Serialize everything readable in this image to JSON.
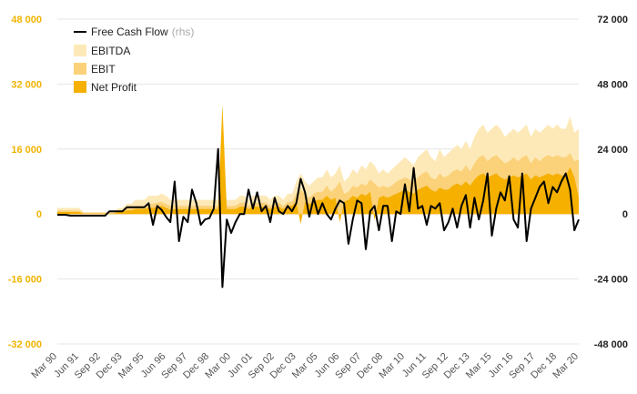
{
  "chart_data": {
    "type": "area",
    "title": "",
    "x_tick_labels": [
      "Mar 90",
      "Jun 91",
      "Sep 92",
      "Dec 93",
      "Mar 95",
      "Jun 96",
      "Sep 97",
      "Dec 98",
      "Mar 00",
      "Jun 01",
      "Sep 02",
      "Dec 03",
      "Mar 05",
      "Jun 06",
      "Sep 07",
      "Dec 08",
      "Mar 10",
      "Jun 11",
      "Sep 12",
      "Dec 13",
      "Mar 15",
      "Jun 16",
      "Sep 17",
      "Dec 18",
      "Mar 20"
    ],
    "y_left": {
      "ticks": [
        "48 000",
        "32 000",
        "16 000",
        "0",
        "-16 000",
        "-32 000"
      ],
      "ylim": [
        -32000,
        48000
      ]
    },
    "y_right": {
      "ticks": [
        "72 000",
        "48 000",
        "24 000",
        "0",
        "-24 000",
        "-48 000"
      ],
      "ylim": [
        -48000,
        72000
      ]
    },
    "grid": true,
    "legend": {
      "position": "top-left",
      "items": [
        {
          "label": "Free Cash Flow",
          "suffix": "(rhs)",
          "kind": "line",
          "color": "#000000"
        },
        {
          "label": "EBITDA",
          "kind": "area",
          "color": "#fde9b8"
        },
        {
          "label": "EBIT",
          "kind": "area",
          "color": "#fbd27a"
        },
        {
          "label": "Net Profit",
          "kind": "area",
          "color": "#f5b000"
        }
      ]
    },
    "series": [
      {
        "name": "EBITDA",
        "axis": "left",
        "color": "#fde9b8",
        "values": [
          1500,
          1500,
          1500,
          1500,
          1500,
          1500,
          500,
          500,
          500,
          500,
          500,
          500,
          500,
          500,
          1500,
          1500,
          2500,
          2500,
          3500,
          3500,
          3500,
          4500,
          4500,
          4500,
          5000,
          4500,
          3500,
          3500,
          3500,
          3500,
          3500,
          3500,
          3500,
          3500,
          3500,
          3500,
          3500,
          3500,
          4500,
          3500,
          3500,
          3500,
          4500,
          4500,
          3500,
          4500,
          4500,
          4500,
          4500,
          3500,
          4500,
          4500,
          3500,
          5000,
          5000,
          8000,
          10000,
          8000,
          7000,
          8000,
          9000,
          9000,
          11000,
          9000,
          10000,
          12000,
          8000,
          9000,
          11000,
          10000,
          12000,
          11000,
          13000,
          12000,
          10000,
          11000,
          10000,
          11000,
          12000,
          13000,
          14000,
          13000,
          12000,
          14000,
          15000,
          16000,
          14000,
          13000,
          16000,
          14000,
          15000,
          16000,
          17000,
          16000,
          18000,
          16000,
          19000,
          21000,
          22000,
          20000,
          21000,
          22000,
          21000,
          19000,
          20000,
          21000,
          20000,
          21000,
          22000,
          19000,
          21000,
          20000,
          21000,
          22000,
          21000,
          22000,
          21000,
          21000,
          24000,
          20000,
          21000
        ]
      },
      {
        "name": "EBIT",
        "axis": "left",
        "color": "#fbd27a",
        "values": [
          900,
          900,
          900,
          900,
          900,
          900,
          300,
          300,
          300,
          300,
          300,
          300,
          300,
          300,
          900,
          900,
          1500,
          1500,
          2000,
          2000,
          2000,
          2500,
          2500,
          2800,
          3000,
          2500,
          2000,
          2000,
          2000,
          2000,
          2000,
          2000,
          2000,
          2000,
          2000,
          2000,
          2000,
          2000,
          2800,
          2000,
          2000,
          2000,
          2800,
          2800,
          2000,
          2800,
          2800,
          2800,
          2800,
          2000,
          2800,
          2800,
          2000,
          3000,
          3000,
          5000,
          6000,
          5000,
          4000,
          5000,
          5500,
          5500,
          7000,
          5500,
          6500,
          8000,
          5000,
          5500,
          7000,
          6500,
          7500,
          7000,
          8500,
          7500,
          6500,
          7000,
          6500,
          7000,
          8000,
          8500,
          9000,
          8500,
          8000,
          9000,
          10000,
          10500,
          9000,
          8500,
          10000,
          9000,
          9500,
          10500,
          11000,
          10500,
          12000,
          10500,
          12500,
          14000,
          14500,
          13000,
          14000,
          14500,
          13500,
          12500,
          13000,
          14000,
          13000,
          14000,
          14500,
          12500,
          14000,
          13000,
          14000,
          14500,
          14000,
          14500,
          14000,
          14000,
          15000,
          13000,
          13500
        ]
      },
      {
        "name": "Net Profit",
        "axis": "left",
        "color": "#f5b000",
        "values": [
          500,
          500,
          500,
          500,
          500,
          500,
          100,
          100,
          100,
          100,
          100,
          100,
          100,
          100,
          500,
          500,
          900,
          900,
          1200,
          1200,
          1200,
          1500,
          1500,
          1700,
          2000,
          1500,
          1000,
          1200,
          1200,
          1200,
          1200,
          1200,
          1200,
          1200,
          1200,
          1200,
          1200,
          1200,
          27000,
          1200,
          1200,
          1200,
          1800,
          1800,
          1200,
          1800,
          1800,
          1800,
          1800,
          1200,
          1800,
          1800,
          1200,
          2000,
          2000,
          3000,
          -2500,
          3000,
          2500,
          3000,
          3500,
          3500,
          4500,
          3500,
          4000,
          -2000,
          3000,
          3500,
          4500,
          4000,
          5000,
          4500,
          5500,
          -1500,
          4000,
          4500,
          4000,
          4500,
          5000,
          5500,
          6000,
          5500,
          5000,
          6000,
          6500,
          7000,
          6000,
          5500,
          6500,
          6000,
          6000,
          7000,
          7500,
          7000,
          8000,
          7000,
          8500,
          9500,
          10000,
          9000,
          9500,
          10000,
          9000,
          8500,
          9000,
          9500,
          9000,
          9500,
          10000,
          8500,
          9500,
          9000,
          9500,
          10000,
          9500,
          10000,
          9500,
          9500,
          11500,
          9000,
          4000
        ]
      },
      {
        "name": "Free Cash Flow",
        "axis": "right",
        "color": "#000000",
        "values": [
          -300,
          -300,
          -300,
          -600,
          -600,
          -600,
          -600,
          -600,
          -600,
          -600,
          -600,
          -600,
          1000,
          1000,
          1000,
          1000,
          2500,
          2500,
          2500,
          2500,
          2500,
          4000,
          -4000,
          3000,
          1500,
          -1000,
          -3000,
          12000,
          -10000,
          -1000,
          -3000,
          9000,
          4000,
          -4000,
          -2000,
          -1500,
          2000,
          24000,
          -27000,
          -2000,
          -7000,
          -3000,
          0,
          0,
          9000,
          2000,
          8000,
          1000,
          3000,
          -3000,
          6000,
          1000,
          0,
          3000,
          1000,
          4000,
          13000,
          8000,
          -1000,
          6000,
          0,
          4000,
          0,
          -2000,
          2000,
          5000,
          4000,
          -11000,
          -2000,
          5000,
          4000,
          -13000,
          1000,
          3000,
          -6000,
          3000,
          3000,
          -10000,
          1000,
          0,
          11000,
          1000,
          17000,
          2000,
          3000,
          -4000,
          3000,
          2000,
          4000,
          -6000,
          -3000,
          2000,
          -5000,
          3000,
          7000,
          -5000,
          6000,
          -2000,
          5000,
          15000,
          -8000,
          2000,
          8000,
          5000,
          14000,
          -2000,
          -5000,
          15000,
          -10000,
          2000,
          6000,
          10000,
          12000,
          4000,
          10000,
          8000,
          12000,
          15000,
          9000,
          -6000,
          -2000
        ]
      }
    ]
  }
}
